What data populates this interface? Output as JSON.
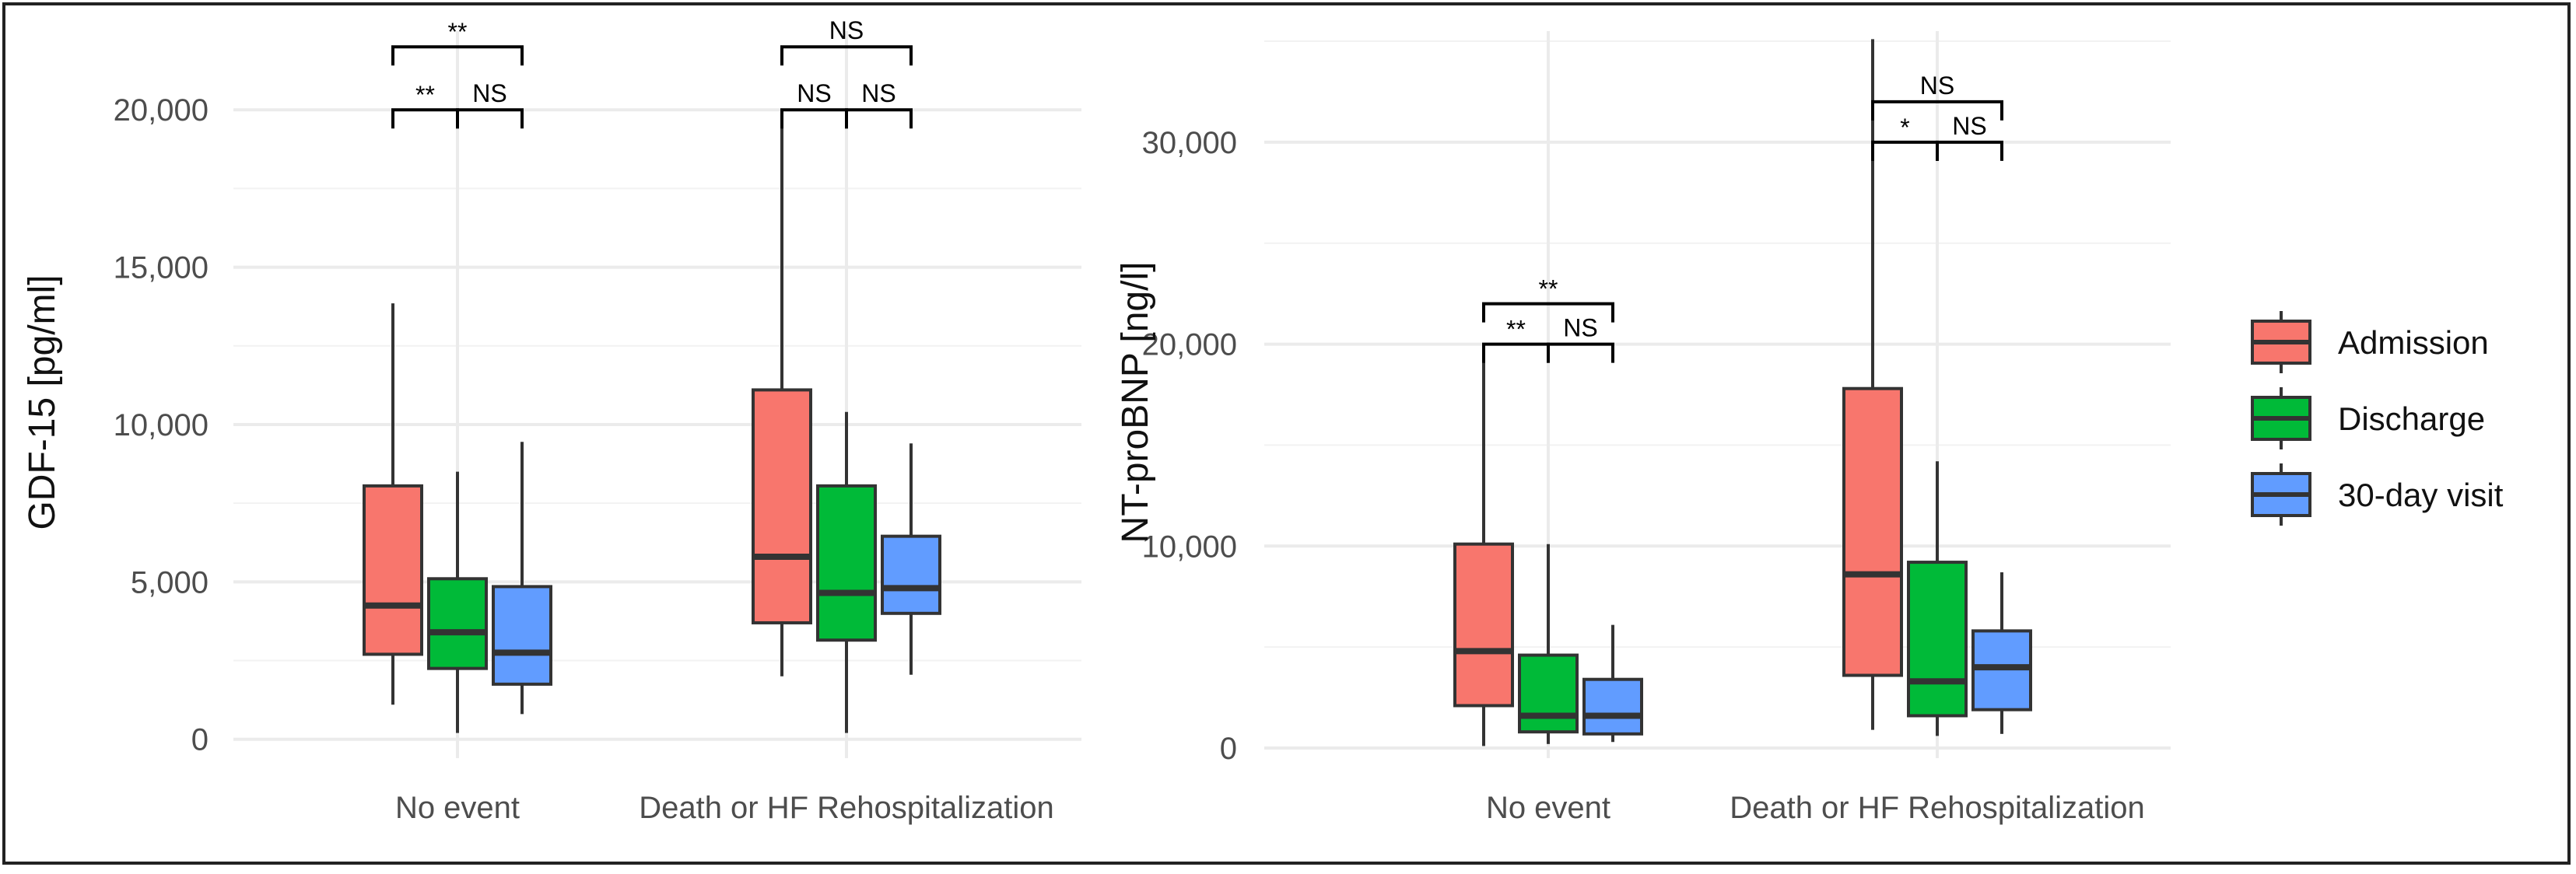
{
  "legend": {
    "items": [
      {
        "label": "Admission",
        "color": "#F8766D"
      },
      {
        "label": "Discharge",
        "color": "#00BA38"
      },
      {
        "label": "30-day visit",
        "color": "#619CFF"
      }
    ]
  },
  "chart_data": [
    {
      "id": "gdf15",
      "type": "boxplot",
      "ylabel": "GDF-15 [pg/ml]",
      "xlabel": "",
      "ylim": [
        -600,
        22500
      ],
      "yticks": [
        0,
        5000,
        10000,
        15000,
        20000
      ],
      "ytick_labels": [
        "0",
        "5,000",
        "10,000",
        "15,000",
        "20,000"
      ],
      "categories": [
        "No event",
        "Death or HF Rehospitalization"
      ],
      "series": [
        {
          "name": "Admission",
          "color": "#F8766D",
          "boxes": [
            {
              "low": 1100,
              "q1": 2700,
              "median": 4250,
              "q3": 8050,
              "high": 13850
            },
            {
              "low": 2000,
              "q1": 3700,
              "median": 5800,
              "q3": 11100,
              "high": 20000
            }
          ]
        },
        {
          "name": "Discharge",
          "color": "#00BA38",
          "boxes": [
            {
              "low": 200,
              "q1": 2250,
              "median": 3400,
              "q3": 5100,
              "high": 8500
            },
            {
              "low": 200,
              "q1": 3150,
              "median": 4650,
              "q3": 8050,
              "high": 10400
            }
          ]
        },
        {
          "name": "30-day visit",
          "color": "#619CFF",
          "boxes": [
            {
              "low": 800,
              "q1": 1750,
              "median": 2750,
              "q3": 4850,
              "high": 9450
            },
            {
              "low": 2050,
              "q1": 4000,
              "median": 4800,
              "q3": 6450,
              "high": 9400
            }
          ]
        }
      ],
      "annotations": [
        {
          "category": 0,
          "from": 0,
          "to": 1,
          "y": 20000,
          "text": "**",
          "tier": "low"
        },
        {
          "category": 0,
          "from": 1,
          "to": 2,
          "y": 20000,
          "text": "NS",
          "tier": "low"
        },
        {
          "category": 0,
          "from": 0,
          "to": 2,
          "y": 22000,
          "text": "**",
          "tier": "high"
        },
        {
          "category": 1,
          "from": 0,
          "to": 1,
          "y": 20000,
          "text": "NS",
          "tier": "low"
        },
        {
          "category": 1,
          "from": 1,
          "to": 2,
          "y": 20000,
          "text": "NS",
          "tier": "low"
        },
        {
          "category": 1,
          "from": 0,
          "to": 2,
          "y": 22000,
          "text": "NS",
          "tier": "high"
        }
      ]
    },
    {
      "id": "ntprobnp",
      "type": "boxplot",
      "ylabel": "NT-proBNP [ng/l]",
      "xlabel": "",
      "ylim": [
        -500,
        35500
      ],
      "yticks": [
        0,
        10000,
        20000,
        30000
      ],
      "ytick_labels": [
        "0",
        "10,000",
        "20,000",
        "30,000"
      ],
      "categories": [
        "No event",
        "Death or HF Rehospitalization"
      ],
      "series": [
        {
          "name": "Admission",
          "color": "#F8766D",
          "boxes": [
            {
              "low": 100,
              "q1": 2100,
              "median": 4800,
              "q3": 10100,
              "high": 20000
            },
            {
              "low": 900,
              "q1": 3600,
              "median": 8600,
              "q3": 17800,
              "high": 35100
            }
          ]
        },
        {
          "name": "Discharge",
          "color": "#00BA38",
          "boxes": [
            {
              "low": 200,
              "q1": 800,
              "median": 1600,
              "q3": 4600,
              "high": 10100
            },
            {
              "low": 600,
              "q1": 1600,
              "median": 3300,
              "q3": 9200,
              "high": 14200
            }
          ]
        },
        {
          "name": "30-day visit",
          "color": "#619CFF",
          "boxes": [
            {
              "low": 300,
              "q1": 700,
              "median": 1600,
              "q3": 3400,
              "high": 6100
            },
            {
              "low": 700,
              "q1": 1900,
              "median": 4000,
              "q3": 5800,
              "high": 8700
            }
          ]
        }
      ],
      "annotations": [
        {
          "category": 0,
          "from": 0,
          "to": 1,
          "y": 20000,
          "text": "**",
          "tier": "low"
        },
        {
          "category": 0,
          "from": 1,
          "to": 2,
          "y": 20000,
          "text": "NS",
          "tier": "low"
        },
        {
          "category": 0,
          "from": 0,
          "to": 2,
          "y": 22000,
          "text": "**",
          "tier": "high"
        },
        {
          "category": 1,
          "from": 0,
          "to": 1,
          "y": 30000,
          "text": "*",
          "tier": "low"
        },
        {
          "category": 1,
          "from": 1,
          "to": 2,
          "y": 30000,
          "text": "NS",
          "tier": "low"
        },
        {
          "category": 1,
          "from": 0,
          "to": 2,
          "y": 32000,
          "text": "NS",
          "tier": "high"
        }
      ]
    }
  ]
}
